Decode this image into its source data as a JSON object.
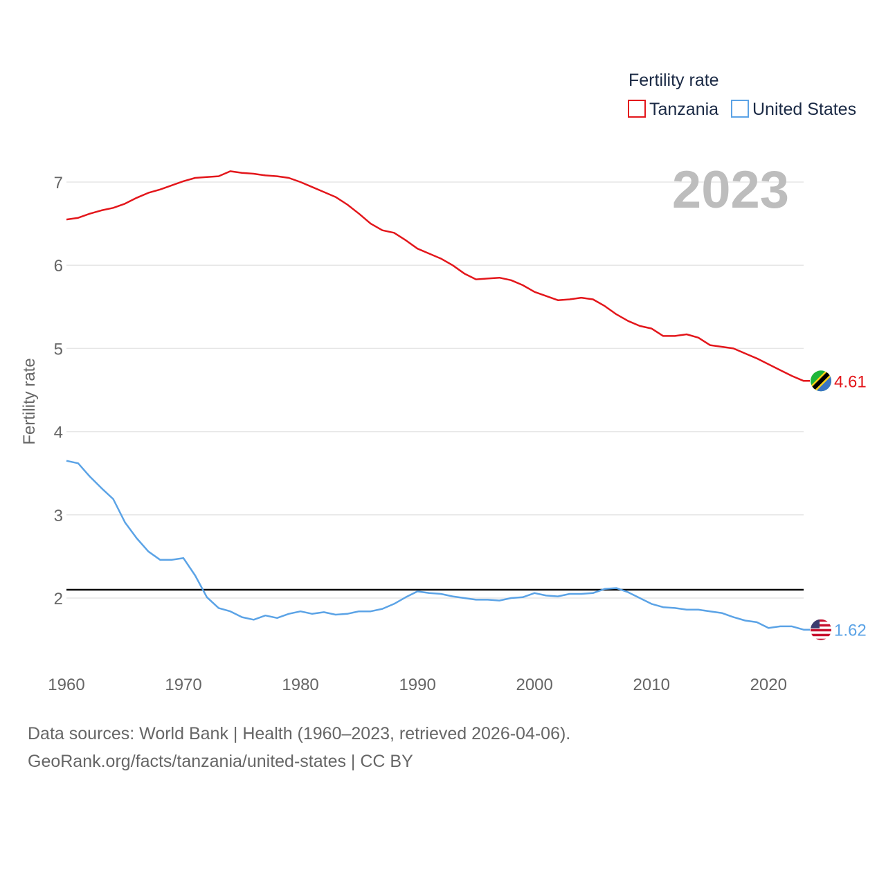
{
  "chart_data": {
    "type": "line",
    "title": "",
    "legend_title": "Fertility rate",
    "legend_position": "top-right",
    "year_label": "2023",
    "xlabel": "",
    "ylabel": "Fertility rate",
    "xlim": [
      1960,
      2023
    ],
    "ylim": [
      1.2,
      7.5
    ],
    "xticks": [
      1960,
      1970,
      1980,
      1990,
      2000,
      2010,
      2020
    ],
    "yticks": [
      2,
      3,
      4,
      5,
      6,
      7
    ],
    "grid": true,
    "reference_line": {
      "y": 2.1,
      "color": "#000000"
    },
    "x": [
      1960,
      1961,
      1962,
      1963,
      1964,
      1965,
      1966,
      1967,
      1968,
      1969,
      1970,
      1971,
      1972,
      1973,
      1974,
      1975,
      1976,
      1977,
      1978,
      1979,
      1980,
      1981,
      1982,
      1983,
      1984,
      1985,
      1986,
      1987,
      1988,
      1989,
      1990,
      1991,
      1992,
      1993,
      1994,
      1995,
      1996,
      1997,
      1998,
      1999,
      2000,
      2001,
      2002,
      2003,
      2004,
      2005,
      2006,
      2007,
      2008,
      2009,
      2010,
      2011,
      2012,
      2013,
      2014,
      2015,
      2016,
      2017,
      2018,
      2019,
      2020,
      2021,
      2022,
      2023
    ],
    "series": [
      {
        "name": "Tanzania",
        "color": "#e3161b",
        "end_label": "4.61",
        "flag_icon": "tanzania-flag-icon",
        "values": [
          6.55,
          6.57,
          6.62,
          6.66,
          6.69,
          6.74,
          6.81,
          6.87,
          6.91,
          6.96,
          7.01,
          7.05,
          7.06,
          7.07,
          7.13,
          7.11,
          7.1,
          7.08,
          7.07,
          7.05,
          7.0,
          6.94,
          6.88,
          6.82,
          6.73,
          6.62,
          6.5,
          6.42,
          6.39,
          6.3,
          6.2,
          6.14,
          6.08,
          6.0,
          5.9,
          5.83,
          5.84,
          5.85,
          5.82,
          5.76,
          5.68,
          5.63,
          5.58,
          5.59,
          5.61,
          5.59,
          5.51,
          5.41,
          5.33,
          5.27,
          5.24,
          5.15,
          5.15,
          5.17,
          5.13,
          5.04,
          5.02,
          5.0,
          4.94,
          4.88,
          4.81,
          4.74,
          4.67,
          4.61
        ]
      },
      {
        "name": "United States",
        "color": "#5ba3e6",
        "end_label": "1.62",
        "flag_icon": "united-states-flag-icon",
        "values": [
          3.65,
          3.62,
          3.46,
          3.32,
          3.19,
          2.91,
          2.72,
          2.56,
          2.46,
          2.46,
          2.48,
          2.27,
          2.01,
          1.88,
          1.84,
          1.77,
          1.74,
          1.79,
          1.76,
          1.81,
          1.84,
          1.81,
          1.83,
          1.8,
          1.81,
          1.84,
          1.84,
          1.87,
          1.93,
          2.01,
          2.08,
          2.06,
          2.05,
          2.02,
          2.0,
          1.98,
          1.98,
          1.97,
          2.0,
          2.01,
          2.06,
          2.03,
          2.02,
          2.05,
          2.05,
          2.06,
          2.11,
          2.12,
          2.07,
          2.0,
          1.93,
          1.89,
          1.88,
          1.86,
          1.86,
          1.84,
          1.82,
          1.77,
          1.73,
          1.71,
          1.64,
          1.66,
          1.66,
          1.62
        ]
      }
    ]
  },
  "footer": {
    "line1": "Data sources: World Bank | Health (1960–2023, retrieved 2026-04-06).",
    "line2": "GeoRank.org/facts/tanzania/united-states | CC BY"
  }
}
